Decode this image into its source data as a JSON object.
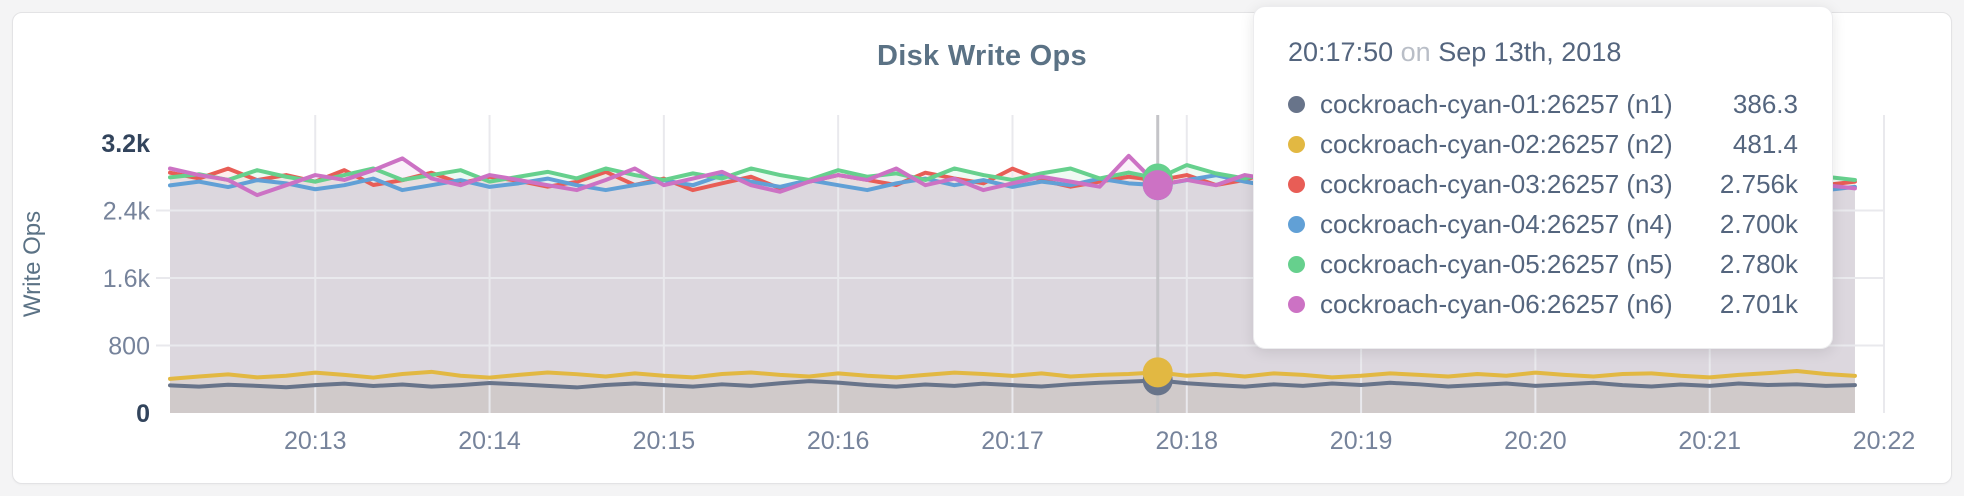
{
  "page": {
    "background": "#f4f4f5"
  },
  "chart_data": {
    "type": "line",
    "title": "Disk Write Ops",
    "ylabel": "Write Ops",
    "xlabel": "",
    "ylim": [
      0,
      3200
    ],
    "grid": true,
    "x_start": "20:12:10",
    "x_end": "20:22:00",
    "x_step_seconds": 10,
    "x_ticks": [
      "20:13",
      "20:14",
      "20:15",
      "20:16",
      "20:17",
      "20:18",
      "20:19",
      "20:20",
      "20:21",
      "20:22"
    ],
    "y_ticks": [
      {
        "v": 0,
        "label": "0",
        "emph": true
      },
      {
        "v": 800,
        "label": "800",
        "emph": false
      },
      {
        "v": 1600,
        "label": "1.6k",
        "emph": false
      },
      {
        "v": 2400,
        "label": "2.4k",
        "emph": false
      },
      {
        "v": 3200,
        "label": "3.2k",
        "emph": true
      }
    ],
    "highlight_index": 34,
    "highlight_time": "20:17:50",
    "series": [
      {
        "name": "cockroach-cyan-01:26257 (n1)",
        "short": "n1",
        "color": "#68748a",
        "values": [
          328,
          312,
          335,
          322,
          305,
          330,
          348,
          320,
          338,
          312,
          330,
          355,
          340,
          322,
          303,
          332,
          350,
          330,
          312,
          340,
          322,
          352,
          378,
          360,
          332,
          312,
          338,
          322,
          348,
          330,
          314,
          340,
          358,
          372,
          386.3,
          352,
          330,
          312,
          340,
          322,
          350,
          332,
          358,
          340,
          314,
          332,
          350,
          322,
          340,
          358,
          330,
          314,
          338,
          322,
          350,
          332,
          340,
          322,
          331
        ]
      },
      {
        "name": "cockroach-cyan-02:26257 (n2)",
        "short": "n2",
        "color": "#e2b842",
        "values": [
          405,
          432,
          458,
          422,
          442,
          478,
          452,
          420,
          462,
          488,
          442,
          420,
          452,
          480,
          460,
          432,
          470,
          442,
          422,
          462,
          480,
          452,
          432,
          470,
          442,
          422,
          452,
          478,
          462,
          440,
          470,
          432,
          452,
          462,
          481.4,
          442,
          462,
          432,
          470,
          452,
          422,
          442,
          470,
          452,
          432,
          462,
          442,
          478,
          452,
          432,
          462,
          470,
          442,
          422,
          452,
          472,
          498,
          462,
          440
        ]
      },
      {
        "name": "cockroach-cyan-03:26257 (n3)",
        "short": "n3",
        "color": "#e85d56",
        "values": [
          2848,
          2780,
          2896,
          2760,
          2820,
          2742,
          2878,
          2702,
          2760,
          2848,
          2722,
          2800,
          2752,
          2682,
          2740,
          2858,
          2702,
          2778,
          2642,
          2722,
          2800,
          2662,
          2742,
          2820,
          2762,
          2702,
          2848,
          2780,
          2722,
          2896,
          2760,
          2682,
          2742,
          2800,
          2756,
          2820,
          2702,
          2762,
          2878,
          2742,
          2800,
          2722,
          2762,
          2702,
          2820,
          2780,
          2742,
          2858,
          2702,
          2778,
          2722,
          2800,
          2762,
          2742,
          2702,
          2780,
          2662,
          2702,
          2742
        ]
      },
      {
        "name": "cockroach-cyan-04:26257 (n4)",
        "short": "n4",
        "color": "#61a0d6",
        "values": [
          2698,
          2742,
          2678,
          2760,
          2722,
          2652,
          2700,
          2778,
          2642,
          2700,
          2760,
          2680,
          2722,
          2778,
          2700,
          2642,
          2702,
          2758,
          2700,
          2818,
          2742,
          2680,
          2760,
          2700,
          2642,
          2722,
          2778,
          2700,
          2760,
          2680,
          2742,
          2700,
          2778,
          2722,
          2700,
          2760,
          2818,
          2742,
          2680,
          2722,
          2760,
          2700,
          2642,
          2700,
          2742,
          2778,
          2700,
          2660,
          2722,
          2760,
          2700,
          2742,
          2680,
          2722,
          2700,
          2760,
          2700,
          2642,
          2680
        ]
      },
      {
        "name": "cockroach-cyan-05:26257 (n5)",
        "short": "n5",
        "color": "#66d08d",
        "values": [
          2792,
          2830,
          2762,
          2878,
          2800,
          2742,
          2820,
          2898,
          2762,
          2820,
          2878,
          2742,
          2800,
          2858,
          2780,
          2898,
          2820,
          2762,
          2840,
          2780,
          2898,
          2820,
          2762,
          2878,
          2800,
          2840,
          2762,
          2898,
          2820,
          2762,
          2840,
          2898,
          2780,
          2850,
          2780,
          2938,
          2840,
          2780,
          2858,
          2800,
          2898,
          2820,
          2762,
          2840,
          2780,
          2820,
          2878,
          2800,
          2762,
          2840,
          2898,
          2800,
          2762,
          2820,
          2858,
          2780,
          2840,
          2800,
          2762
        ]
      },
      {
        "name": "cockroach-cyan-06:26257 (n6)",
        "short": "n6",
        "color": "#cc72c4",
        "values": [
          2898,
          2820,
          2762,
          2582,
          2700,
          2820,
          2762,
          2878,
          3018,
          2780,
          2700,
          2820,
          2762,
          2700,
          2642,
          2762,
          2898,
          2700,
          2778,
          2858,
          2700,
          2622,
          2742,
          2820,
          2762,
          2898,
          2700,
          2778,
          2642,
          2722,
          2800,
          2742,
          2682,
          3048,
          2701,
          2762,
          2700,
          2820,
          2762,
          2700,
          2778,
          2722,
          2642,
          2762,
          2820,
          2700,
          2762,
          2898,
          2820,
          2762,
          2700,
          2642,
          2700,
          2778,
          2722,
          2762,
          2800,
          2700,
          2662
        ]
      }
    ]
  },
  "tooltip": {
    "time": "20:17:50",
    "conjunction": "on",
    "date": "Sep 13th, 2018",
    "rows": [
      {
        "label": "cockroach-cyan-01:26257 (n1)",
        "value": "386.3"
      },
      {
        "label": "cockroach-cyan-02:26257 (n2)",
        "value": "481.4"
      },
      {
        "label": "cockroach-cyan-03:26257 (n3)",
        "value": "2.756k"
      },
      {
        "label": "cockroach-cyan-04:26257 (n4)",
        "value": "2.700k"
      },
      {
        "label": "cockroach-cyan-05:26257 (n5)",
        "value": "2.780k"
      },
      {
        "label": "cockroach-cyan-06:26257 (n6)",
        "value": "2.701k"
      }
    ]
  },
  "colors": {
    "grid": "#e9e9ed",
    "crosshair": "#c4c4c8",
    "axis_text": "#76839b",
    "axis_text_emphasis": "#32445c",
    "title_text": "#5b7285",
    "tooltip_text": "#54657e"
  }
}
